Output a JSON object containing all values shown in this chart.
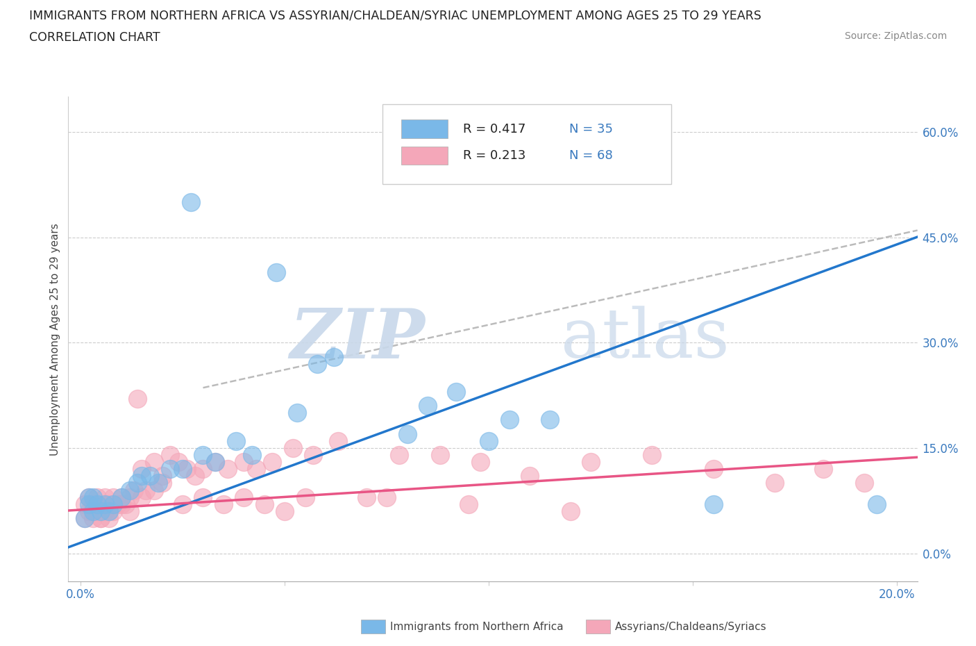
{
  "title_line1": "IMMIGRANTS FROM NORTHERN AFRICA VS ASSYRIAN/CHALDEAN/SYRIAC UNEMPLOYMENT AMONG AGES 25 TO 29 YEARS",
  "title_line2": "CORRELATION CHART",
  "source_text": "Source: ZipAtlas.com",
  "ylabel": "Unemployment Among Ages 25 to 29 years",
  "xlim": [
    -0.003,
    0.205
  ],
  "ylim": [
    -0.04,
    0.65
  ],
  "yticks_right": [
    0.0,
    0.15,
    0.3,
    0.45,
    0.6
  ],
  "ytick_labels_right": [
    "0.0%",
    "15.0%",
    "30.0%",
    "45.0%",
    "60.0%"
  ],
  "color_blue": "#7ab8e8",
  "color_pink": "#f4a7b9",
  "color_blue_line": "#2277cc",
  "color_pink_line": "#e85585",
  "color_dashed": "#bbbbbb",
  "blue_x": [
    0.001,
    0.002,
    0.002,
    0.003,
    0.003,
    0.004,
    0.005,
    0.006,
    0.007,
    0.008,
    0.01,
    0.012,
    0.014,
    0.015,
    0.017,
    0.019,
    0.022,
    0.025,
    0.027,
    0.03,
    0.033,
    0.038,
    0.042,
    0.048,
    0.053,
    0.058,
    0.062,
    0.08,
    0.085,
    0.092,
    0.1,
    0.105,
    0.115,
    0.155,
    0.195
  ],
  "blue_y": [
    0.05,
    0.07,
    0.08,
    0.06,
    0.08,
    0.07,
    0.06,
    0.07,
    0.06,
    0.07,
    0.08,
    0.09,
    0.1,
    0.11,
    0.11,
    0.1,
    0.12,
    0.12,
    0.5,
    0.14,
    0.13,
    0.16,
    0.14,
    0.4,
    0.2,
    0.27,
    0.28,
    0.17,
    0.21,
    0.23,
    0.16,
    0.19,
    0.19,
    0.07,
    0.07
  ],
  "pink_x": [
    0.001,
    0.001,
    0.002,
    0.002,
    0.003,
    0.003,
    0.004,
    0.004,
    0.005,
    0.005,
    0.006,
    0.006,
    0.007,
    0.007,
    0.008,
    0.008,
    0.009,
    0.01,
    0.011,
    0.012,
    0.013,
    0.014,
    0.015,
    0.016,
    0.018,
    0.02,
    0.022,
    0.024,
    0.026,
    0.028,
    0.03,
    0.033,
    0.036,
    0.04,
    0.043,
    0.047,
    0.052,
    0.057,
    0.063,
    0.07,
    0.078,
    0.088,
    0.098,
    0.11,
    0.125,
    0.14,
    0.155,
    0.17,
    0.182,
    0.192,
    0.003,
    0.005,
    0.007,
    0.01,
    0.012,
    0.015,
    0.018,
    0.02,
    0.025,
    0.03,
    0.035,
    0.04,
    0.045,
    0.05,
    0.055,
    0.075,
    0.095,
    0.12
  ],
  "pink_y": [
    0.05,
    0.07,
    0.06,
    0.08,
    0.05,
    0.07,
    0.06,
    0.08,
    0.05,
    0.07,
    0.06,
    0.08,
    0.05,
    0.07,
    0.06,
    0.08,
    0.07,
    0.08,
    0.07,
    0.08,
    0.09,
    0.22,
    0.12,
    0.09,
    0.13,
    0.11,
    0.14,
    0.13,
    0.12,
    0.11,
    0.12,
    0.13,
    0.12,
    0.13,
    0.12,
    0.13,
    0.15,
    0.14,
    0.16,
    0.08,
    0.14,
    0.14,
    0.13,
    0.11,
    0.13,
    0.14,
    0.12,
    0.1,
    0.12,
    0.1,
    0.06,
    0.05,
    0.06,
    0.07,
    0.06,
    0.08,
    0.09,
    0.1,
    0.07,
    0.08,
    0.07,
    0.08,
    0.07,
    0.06,
    0.08,
    0.08,
    0.07,
    0.06
  ],
  "blue_line_x0": 0.0,
  "blue_line_y0": 0.015,
  "blue_line_x1": 0.16,
  "blue_line_y1": 0.355,
  "pink_line_x0": 0.0,
  "pink_line_y0": 0.062,
  "pink_line_x1": 0.2,
  "pink_line_y1": 0.135,
  "dashed_line_x0": 0.045,
  "dashed_line_y0": 0.255,
  "dashed_line_x1": 0.205,
  "dashed_line_y1": 0.46
}
